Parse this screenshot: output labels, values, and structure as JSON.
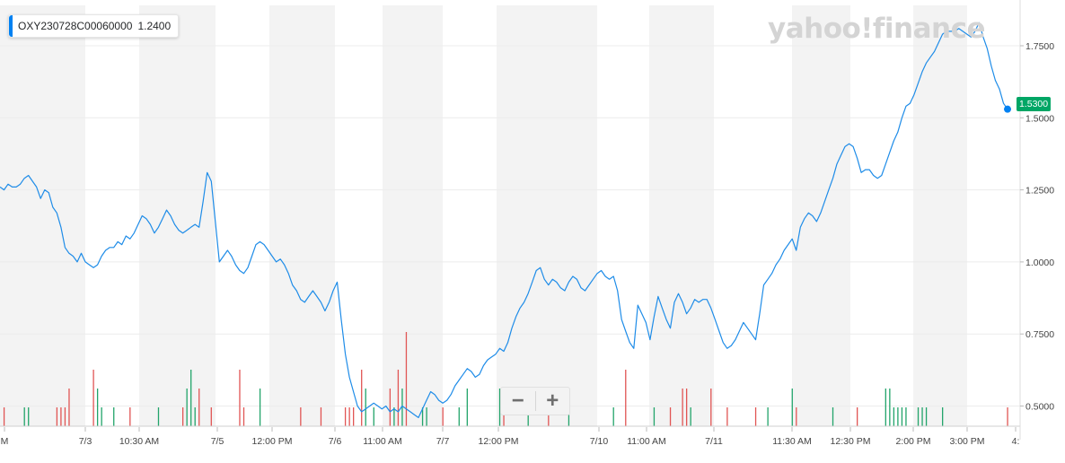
{
  "legend": {
    "symbol": "OXY230728C00060000",
    "value": "1.2400",
    "color": "#0081f2"
  },
  "watermark": "yahoo!finance",
  "current_price_tag": "1.5300",
  "zoom": {
    "minus_label": "−",
    "plus_label": "+"
  },
  "colors": {
    "line": "#1e8ce8",
    "band": "#f3f3f3",
    "grid": "#ececec",
    "vol_up": "#22a46a",
    "vol_down": "#e15554",
    "price_tag": "#00a665",
    "dot": "#0081f2"
  },
  "chart_data": {
    "type": "line",
    "title": "",
    "xlabel": "",
    "ylabel": "",
    "ylim": [
      0.43,
      1.89
    ],
    "yticks": [
      0.5,
      0.75,
      1.0,
      1.25,
      1.5,
      1.75
    ],
    "ytick_labels": [
      "0.5000",
      "0.7500",
      "1.0000",
      "1.2500",
      "1.5000",
      "1.7500"
    ],
    "x_labels": [
      "M",
      "7/3",
      "10:30 AM",
      "7/5",
      "12:00 PM",
      "7/6",
      "11:00 AM",
      "7/7",
      "12:00 PM",
      "7/10",
      "11:00 AM",
      "7/11",
      "11:30 AM",
      "12:30 PM",
      "2:00 PM",
      "3:00 PM",
      "4:"
    ],
    "grid": "horizontal",
    "series": [
      {
        "values": [
          1.26,
          1.25,
          1.27,
          1.26,
          1.26,
          1.27,
          1.29,
          1.3,
          1.28,
          1.26,
          1.22,
          1.25,
          1.24,
          1.19,
          1.17,
          1.12,
          1.05,
          1.03,
          1.02,
          1.0,
          1.03,
          1.0,
          0.99,
          0.98,
          0.99,
          1.02,
          1.04,
          1.05,
          1.05,
          1.07,
          1.06,
          1.09,
          1.08,
          1.1,
          1.13,
          1.16,
          1.15,
          1.13,
          1.1,
          1.12,
          1.15,
          1.18,
          1.16,
          1.13,
          1.11,
          1.1,
          1.11,
          1.12,
          1.13,
          1.12,
          1.21,
          1.31,
          1.28,
          1.14,
          1.0,
          1.02,
          1.04,
          1.02,
          0.99,
          0.97,
          0.96,
          0.98,
          1.02,
          1.06,
          1.07,
          1.06,
          1.04,
          1.02,
          1.0,
          1.01,
          0.99,
          0.96,
          0.92,
          0.9,
          0.87,
          0.86,
          0.88,
          0.9,
          0.88,
          0.86,
          0.83,
          0.86,
          0.9,
          0.93,
          0.8,
          0.68,
          0.6,
          0.55,
          0.5,
          0.48,
          0.49,
          0.5,
          0.51,
          0.5,
          0.49,
          0.5,
          0.48,
          0.49,
          0.48,
          0.5,
          0.49,
          0.48,
          0.47,
          0.46,
          0.49,
          0.52,
          0.55,
          0.54,
          0.52,
          0.51,
          0.52,
          0.54,
          0.57,
          0.59,
          0.61,
          0.63,
          0.62,
          0.6,
          0.61,
          0.64,
          0.66,
          0.67,
          0.68,
          0.7,
          0.69,
          0.72,
          0.77,
          0.81,
          0.84,
          0.86,
          0.89,
          0.93,
          0.97,
          0.98,
          0.94,
          0.92,
          0.94,
          0.93,
          0.91,
          0.9,
          0.93,
          0.95,
          0.94,
          0.91,
          0.9,
          0.92,
          0.94,
          0.96,
          0.97,
          0.95,
          0.94,
          0.95,
          0.9,
          0.8,
          0.76,
          0.72,
          0.7,
          0.85,
          0.82,
          0.79,
          0.73,
          0.81,
          0.88,
          0.84,
          0.8,
          0.77,
          0.86,
          0.89,
          0.86,
          0.82,
          0.84,
          0.87,
          0.86,
          0.87,
          0.87,
          0.84,
          0.8,
          0.76,
          0.72,
          0.7,
          0.71,
          0.73,
          0.76,
          0.79,
          0.77,
          0.75,
          0.73,
          0.82,
          0.92,
          0.94,
          0.96,
          0.99,
          1.01,
          1.04,
          1.06,
          1.08,
          1.04,
          1.12,
          1.15,
          1.17,
          1.16,
          1.14,
          1.17,
          1.21,
          1.25,
          1.29,
          1.34,
          1.37,
          1.4,
          1.41,
          1.4,
          1.36,
          1.31,
          1.32,
          1.32,
          1.3,
          1.29,
          1.3,
          1.34,
          1.38,
          1.42,
          1.45,
          1.5,
          1.54,
          1.55,
          1.58,
          1.62,
          1.66,
          1.69,
          1.71,
          1.73,
          1.76,
          1.79,
          1.8,
          1.8,
          1.8,
          1.81,
          1.8,
          1.79,
          1.78,
          1.8,
          1.83,
          1.78,
          1.74,
          1.68,
          1.63,
          1.6,
          1.55,
          1.53
        ]
      }
    ],
    "volume": [
      0,
      1,
      0,
      0,
      0,
      0,
      1,
      1,
      0,
      0,
      0,
      0,
      0,
      0,
      1,
      1,
      1,
      2,
      0,
      0,
      0,
      0,
      0,
      3,
      2,
      1,
      0,
      0,
      1,
      0,
      0,
      0,
      1,
      0,
      0,
      0,
      0,
      0,
      0,
      1,
      0,
      0,
      0,
      0,
      0,
      1,
      2,
      3,
      1,
      2,
      0,
      0,
      1,
      0,
      0,
      0,
      0,
      0,
      0,
      3,
      1,
      0,
      0,
      0,
      2,
      0,
      0,
      0,
      0,
      0,
      0,
      0,
      0,
      0,
      1,
      0,
      0,
      0,
      0,
      1,
      0,
      0,
      0,
      0,
      0,
      1,
      1,
      1,
      0,
      3,
      2,
      0,
      1,
      0,
      0,
      0,
      2,
      1,
      3,
      2,
      5,
      0,
      0,
      0,
      1,
      1,
      0,
      0,
      0,
      1,
      0,
      0,
      0,
      1,
      0,
      2,
      0,
      0,
      0,
      0,
      0,
      0,
      0,
      2,
      1,
      0,
      0,
      0,
      0,
      0,
      1,
      0,
      0,
      0,
      0,
      2,
      0,
      0,
      0,
      0,
      1,
      0,
      0,
      0,
      0,
      0,
      0,
      0,
      0,
      0,
      0,
      1,
      0,
      0,
      3,
      0,
      0,
      0,
      0,
      0,
      0,
      1,
      0,
      0,
      0,
      1,
      0,
      0,
      2,
      2,
      1,
      0,
      0,
      0,
      0,
      2,
      0,
      0,
      0,
      1,
      0,
      0,
      0,
      0,
      0,
      0,
      1,
      0,
      0,
      1,
      0,
      0,
      0,
      0,
      0,
      2,
      1,
      0,
      0,
      0,
      0,
      0,
      0,
      0,
      0,
      1,
      0,
      0,
      0,
      0,
      0,
      1,
      0,
      0,
      0,
      0,
      0,
      0,
      2,
      2,
      1,
      1,
      1,
      1,
      0,
      0,
      1,
      1,
      1,
      0,
      0,
      0,
      1,
      0,
      0,
      0,
      0,
      0,
      0,
      0,
      0,
      0,
      0,
      0,
      0,
      0,
      0,
      0,
      1,
      0,
      0,
      0,
      0,
      0,
      0,
      0,
      0,
      0,
      0
    ]
  }
}
